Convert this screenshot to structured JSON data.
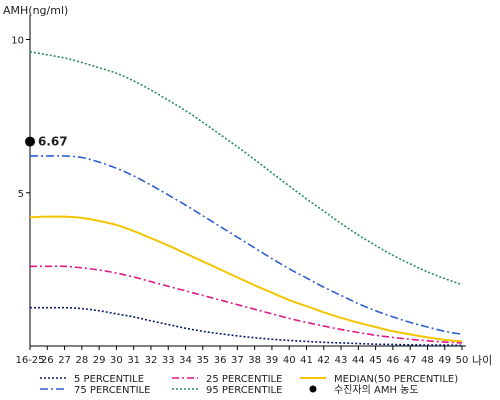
{
  "chart_data": {
    "type": "line",
    "ylabel": "AMH(ng/ml)",
    "xlabel": "나이",
    "ylim": [
      0,
      10.8
    ],
    "yticks": [
      5,
      10
    ],
    "categories": [
      "16-25",
      "26",
      "27",
      "28",
      "29",
      "30",
      "31",
      "32",
      "33",
      "34",
      "35",
      "36",
      "37",
      "38",
      "39",
      "40",
      "41",
      "42",
      "43",
      "44",
      "45",
      "46",
      "47",
      "48",
      "49",
      "50"
    ],
    "series": [
      {
        "name": "5 PERCENTILE",
        "color": "#0a1a6e",
        "dash": "2,2",
        "values": [
          1.25,
          1.25,
          1.25,
          1.22,
          1.15,
          1.05,
          0.95,
          0.82,
          0.7,
          0.58,
          0.48,
          0.4,
          0.33,
          0.27,
          0.22,
          0.18,
          0.15,
          0.12,
          0.1,
          0.08,
          0.06,
          0.05,
          0.04,
          0.03,
          0.03,
          0.02
        ]
      },
      {
        "name": "25 PERCENTILE",
        "color": "#e0178a",
        "dash": "7,3,2,3",
        "values": [
          2.6,
          2.6,
          2.6,
          2.55,
          2.48,
          2.38,
          2.25,
          2.1,
          1.95,
          1.8,
          1.65,
          1.5,
          1.35,
          1.2,
          1.05,
          0.9,
          0.77,
          0.65,
          0.54,
          0.44,
          0.35,
          0.28,
          0.22,
          0.17,
          0.13,
          0.1
        ]
      },
      {
        "name": "75 PERCENTILE",
        "color": "#2f5fd0",
        "dash": "8,3,2,3",
        "values": [
          6.2,
          6.2,
          6.2,
          6.15,
          6.0,
          5.8,
          5.55,
          5.25,
          4.93,
          4.6,
          4.25,
          3.9,
          3.55,
          3.2,
          2.85,
          2.52,
          2.22,
          1.92,
          1.65,
          1.38,
          1.15,
          0.95,
          0.77,
          0.62,
          0.48,
          0.38
        ]
      },
      {
        "name": "95 PERCENTILE",
        "color": "#2e8b57",
        "dash": "2,2",
        "values": [
          9.6,
          9.5,
          9.4,
          9.25,
          9.08,
          8.9,
          8.65,
          8.35,
          8.02,
          7.68,
          7.3,
          6.9,
          6.5,
          6.08,
          5.65,
          5.22,
          4.8,
          4.4,
          4.0,
          3.62,
          3.28,
          2.96,
          2.68,
          2.42,
          2.2,
          2.0
        ]
      },
      {
        "name": "MEDIAN(50 PERCENTILE)",
        "color": "#f2c500",
        "dash": "",
        "values": [
          4.2,
          4.22,
          4.22,
          4.18,
          4.08,
          3.95,
          3.75,
          3.52,
          3.28,
          3.02,
          2.76,
          2.5,
          2.24,
          1.98,
          1.74,
          1.5,
          1.3,
          1.1,
          0.92,
          0.76,
          0.62,
          0.48,
          0.38,
          0.28,
          0.2,
          0.15
        ]
      }
    ],
    "patient": {
      "legend_label": "수진자의 AMH 농도",
      "x_index": 0,
      "value": 6.67,
      "value_label": "6.67",
      "color": "#000000"
    },
    "legend": {
      "position": "bottom",
      "order": [
        "5 PERCENTILE",
        "25 PERCENTILE",
        "MEDIAN(50 PERCENTILE)",
        "75 PERCENTILE",
        "95 PERCENTILE",
        "수진자의 AMH 농도"
      ]
    },
    "grid": false
  }
}
